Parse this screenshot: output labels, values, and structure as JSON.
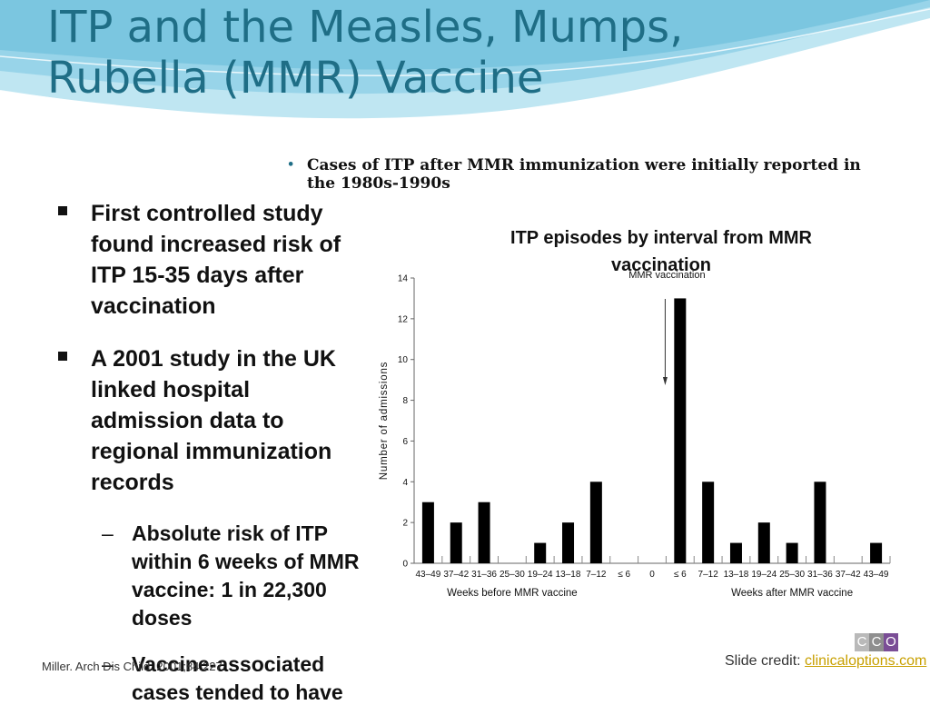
{
  "slide": {
    "title_lines": [
      "ITP and the Measles, Mumps,",
      "Rubella (MMR) Vaccine"
    ],
    "top_bullet": "Cases of ITP after MMR immunization were initially reported in the 1980s-1990s",
    "bullets": [
      "First controlled study found increased risk of ITP 15-35 days after vaccination",
      "A 2001 study in the UK linked hospital admission data to regional immunization records"
    ],
    "sub_bullets": [
      "Absolute risk of ITP within 6 weeks of MMR vaccine: 1 in 22,300 doses",
      "Vaccine-associated cases tended to have"
    ],
    "dash": "–",
    "citation": "Miller. Arch Dis Child. 2001;84:227.",
    "credit_label": "Slide credit:",
    "credit_link": "clinicaloptions.com",
    "logo_letters": [
      "C",
      "C",
      "O"
    ],
    "colors": {
      "title": "#1f6e86",
      "wave_light": "#bfe6f2",
      "wave_mid": "#8fd0e6",
      "logo": [
        "#b9b9b9",
        "#8f8f8f",
        "#7a4d96"
      ]
    }
  },
  "chart_data": {
    "type": "bar",
    "title": "ITP episodes by interval from MMR vaccination",
    "ylabel": "Number of admissions",
    "ylim": [
      0,
      14
    ],
    "yticks": [
      0,
      2,
      4,
      6,
      8,
      10,
      12,
      14
    ],
    "categories": [
      "43–49",
      "37–42",
      "31–36",
      "25–30",
      "19–24",
      "13–18",
      "7–12",
      "≤ 6",
      "0",
      "≤ 6",
      "7–12",
      "13–18",
      "19–24",
      "25–30",
      "31–36",
      "37–42",
      "43–49"
    ],
    "values": [
      3,
      2,
      3,
      0,
      1,
      2,
      4,
      null,
      null,
      13,
      4,
      1,
      2,
      1,
      4,
      0,
      1
    ],
    "group_labels": [
      "Weeks before MMR vaccine",
      "Weeks after MMR vaccine"
    ],
    "annotation": "MMR vaccination",
    "grid": false,
    "legend": "none"
  }
}
